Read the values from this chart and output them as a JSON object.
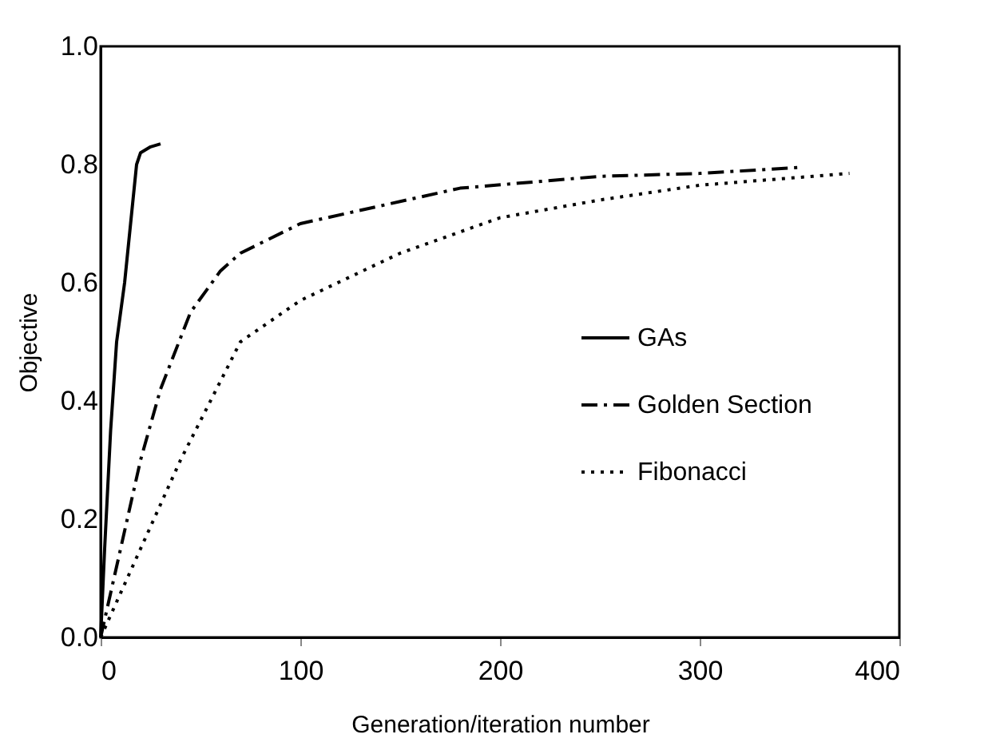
{
  "chart_data": {
    "type": "line",
    "xlabel": "Generation/iteration number",
    "ylabel": "Objective",
    "xlim": [
      0,
      400
    ],
    "xticks": [
      0,
      100,
      200,
      300,
      400
    ],
    "ylim": [
      0,
      1
    ],
    "yticks": [
      {
        "value": 0,
        "label": "0.0"
      },
      {
        "value": 0.2,
        "label": "0.2"
      },
      {
        "value": 0.4,
        "label": "0.4"
      },
      {
        "value": 0.6,
        "label": "0.6"
      },
      {
        "value": 0.8,
        "label": "0.8"
      },
      {
        "value": 1,
        "label": "1.0"
      }
    ],
    "grid": false,
    "legend": "right",
    "marker": "none",
    "series": [
      {
        "name": "GAs",
        "color": "#000000",
        "line_style": "solid",
        "x": [
          0,
          2,
          5,
          8,
          12,
          15,
          18,
          20,
          25,
          30
        ],
        "values": [
          0,
          0.15,
          0.35,
          0.5,
          0.6,
          0.7,
          0.8,
          0.82,
          0.83,
          0.835
        ]
      },
      {
        "name": "Golden Section",
        "color": "#000000",
        "line_style": "dashed",
        "x": [
          0,
          10,
          20,
          30,
          45,
          60,
          70,
          100,
          140,
          180,
          250,
          300,
          350
        ],
        "values": [
          0,
          0.15,
          0.3,
          0.42,
          0.55,
          0.62,
          0.65,
          0.7,
          0.73,
          0.76,
          0.78,
          0.785,
          0.795
        ]
      },
      {
        "name": "Fibonacci",
        "color": "#000000",
        "line_style": "dotted",
        "x": [
          0,
          20,
          40,
          70,
          100,
          150,
          200,
          250,
          300,
          375
        ],
        "values": [
          0,
          0.15,
          0.3,
          0.5,
          0.57,
          0.65,
          0.71,
          0.74,
          0.765,
          0.785
        ]
      }
    ]
  }
}
